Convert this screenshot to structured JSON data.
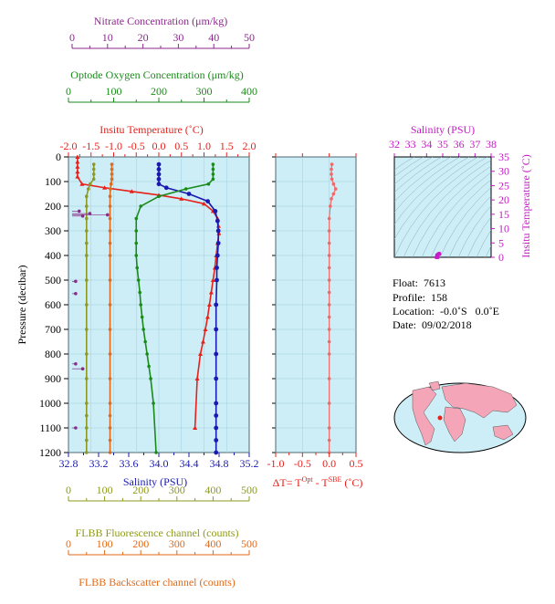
{
  "axes": {
    "nitrate": {
      "label": "Nitrate Concentration (μm/kg)",
      "ticks": [
        "0",
        "10",
        "20",
        "30",
        "40",
        "50"
      ],
      "range": [
        0,
        50
      ],
      "color": "#8B2A8B"
    },
    "oxygen": {
      "label": "Optode Oxygen Concentration (μm/kg)",
      "ticks": [
        "0",
        "100",
        "200",
        "300",
        "400"
      ],
      "range": [
        0,
        400
      ],
      "color": "#1A8A1A"
    },
    "temperature": {
      "label": "Insitu Temperature (˚C)",
      "ticks": [
        "-2.0",
        "-1.5",
        "-1.0",
        "-0.5",
        "0.0",
        "0.5",
        "1.0",
        "1.5",
        "2.0"
      ],
      "range": [
        -2.0,
        2.0
      ],
      "color": "#E8201A"
    },
    "salinity": {
      "label": "Salinity (PSU)",
      "ticks": [
        "32.8",
        "33.2",
        "33.6",
        "34.0",
        "34.4",
        "34.8",
        "35.2"
      ],
      "range": [
        32.8,
        35.2
      ],
      "color": "#1A1AB0"
    },
    "pressure": {
      "label": "Pressure (decibar)",
      "ticks": [
        "0",
        "100",
        "200",
        "300",
        "400",
        "500",
        "600",
        "700",
        "800",
        "900",
        "1000",
        "1100",
        "1200"
      ],
      "range": [
        0,
        1200
      ]
    },
    "deltaT": {
      "label_prefix": "ΔT= T",
      "sup1": "Opt",
      "label_mid": " - T",
      "sup2": "SBE",
      "label_suffix": " (˚C)",
      "ticks": [
        "-1.0",
        "-0.5",
        "0.0",
        "0.5"
      ],
      "range": [
        -1.0,
        0.5
      ],
      "color": "#E8201A"
    },
    "fluorescence": {
      "label": "FLBB Fluorescence channel (counts)",
      "ticks": [
        "0",
        "100",
        "200",
        "300",
        "400",
        "500"
      ],
      "range": [
        0,
        500
      ],
      "color": "#8E9A1E"
    },
    "backscatter": {
      "label": "FLBB Backscatter channel (counts)",
      "ticks": [
        "0",
        "100",
        "200",
        "300",
        "400",
        "500"
      ],
      "range": [
        0,
        500
      ],
      "color": "#E06A1A"
    },
    "ts_salinity": {
      "label": "Salinity (PSU)",
      "ticks": [
        "32",
        "33",
        "34",
        "35",
        "36",
        "37",
        "38"
      ],
      "range": [
        32,
        38
      ],
      "color": "#C81AC8"
    },
    "ts_temperature": {
      "label": "Insitu Temperature (˚C)",
      "ticks": [
        "0",
        "5",
        "10",
        "15",
        "20",
        "25",
        "30",
        "35"
      ],
      "range": [
        0,
        35
      ],
      "color": "#C81AC8"
    }
  },
  "info": {
    "float_label": "Float:",
    "float_value": "7613",
    "profile_label": "Profile:",
    "profile_value": "158",
    "location_label": "Location:",
    "location_value": "-0.0˚S   0.0˚E",
    "date_label": "Date:",
    "date_value": "09/02/2018"
  },
  "chart_data": {
    "type": "line",
    "y_axis": "pressure",
    "series": [
      {
        "name": "temperature",
        "color": "#E8201A",
        "marker": "triangle",
        "x": [
          -1.8,
          -1.8,
          -1.8,
          -1.8,
          -1.8,
          -1.7,
          -1.2,
          -0.6,
          0.0,
          0.5,
          1.0,
          1.2,
          1.3,
          1.32,
          1.33,
          1.3,
          1.27,
          1.24,
          1.2,
          1.16,
          1.12,
          1.08,
          1.03,
          0.98,
          0.92,
          0.85,
          0.8
        ],
        "y": [
          0,
          20,
          40,
          60,
          80,
          110,
          125,
          140,
          155,
          170,
          190,
          220,
          250,
          280,
          310,
          350,
          400,
          450,
          500,
          550,
          600,
          650,
          700,
          750,
          800,
          900,
          1100
        ]
      },
      {
        "name": "salinity",
        "color": "#1A1AB0",
        "marker": "circle",
        "x": [
          34.0,
          34.0,
          34.0,
          34.0,
          34.0,
          34.1,
          34.4,
          34.65,
          34.75,
          34.78,
          34.79,
          34.79,
          34.78,
          34.77,
          34.77,
          34.76,
          34.76,
          34.76,
          34.76,
          34.76,
          34.76,
          34.76,
          34.76,
          34.76
        ],
        "y": [
          30,
          50,
          70,
          90,
          110,
          125,
          150,
          180,
          220,
          260,
          300,
          350,
          400,
          450,
          500,
          600,
          700,
          800,
          900,
          1000,
          1050,
          1100,
          1150,
          1200
        ]
      },
      {
        "name": "oxygen",
        "color": "#1A8A1A",
        "marker": "circle",
        "x": [
          320,
          320,
          320,
          320,
          310,
          260,
          200,
          160,
          150,
          150,
          150,
          150,
          152,
          155,
          158,
          160,
          163,
          166,
          170,
          174,
          178,
          182,
          188,
          194
        ],
        "y": [
          30,
          50,
          70,
          90,
          110,
          130,
          160,
          200,
          250,
          300,
          350,
          400,
          450,
          500,
          550,
          600,
          650,
          700,
          750,
          800,
          850,
          900,
          1000,
          1200
        ]
      },
      {
        "name": "fluorescence",
        "color": "#8E9A1E",
        "marker": "circle",
        "x": [
          70,
          70,
          70,
          70,
          60,
          55,
          50,
          50,
          50,
          50,
          50,
          50,
          50,
          50,
          50,
          50,
          50,
          50,
          50,
          50,
          50,
          50
        ],
        "y": [
          30,
          50,
          70,
          90,
          110,
          130,
          160,
          200,
          250,
          300,
          350,
          400,
          500,
          600,
          700,
          800,
          900,
          1000,
          1050,
          1100,
          1150,
          1200
        ]
      },
      {
        "name": "backscatter",
        "color": "#E06A1A",
        "marker": "circle",
        "x": [
          120,
          120,
          120,
          120,
          118,
          116,
          115,
          115,
          115,
          115,
          115,
          115,
          115,
          115,
          115,
          115,
          115,
          115,
          115,
          115,
          115,
          115
        ],
        "y": [
          30,
          50,
          70,
          90,
          110,
          130,
          160,
          200,
          250,
          300,
          350,
          400,
          500,
          600,
          700,
          800,
          900,
          1000,
          1050,
          1100,
          1150,
          1200
        ]
      },
      {
        "name": "nitrate",
        "color": "#8B2A8B",
        "marker": "circle",
        "x": [
          2,
          5,
          3,
          10,
          1,
          1,
          1,
          3,
          1
        ],
        "y": [
          220,
          230,
          240,
          235,
          505,
          555,
          840,
          860,
          1100
        ]
      },
      {
        "name": "deltaT",
        "color": "#F06868",
        "marker": "circle",
        "x": [
          0.05,
          0.04,
          0.04,
          0.05,
          0.08,
          0.12,
          0.08,
          0.04,
          0.02,
          0.0,
          0.0,
          0.0,
          0.0,
          0.0,
          0.0,
          0.0,
          0.0,
          0.0,
          0.0,
          0.0,
          0.0,
          0.0,
          0.0,
          0.0,
          0.0,
          0.0
        ],
        "y": [
          30,
          50,
          70,
          90,
          110,
          130,
          150,
          170,
          200,
          250,
          300,
          350,
          400,
          450,
          500,
          550,
          600,
          650,
          700,
          750,
          800,
          900,
          1000,
          1100,
          1150,
          1200
        ]
      }
    ],
    "ts_points": {
      "color": "#C81AC8",
      "salinity": [
        34.65,
        34.7,
        34.75,
        34.78,
        34.8,
        34.7,
        34.6
      ],
      "temperature": [
        0.8,
        1.0,
        1.2,
        1.3,
        1.1,
        -0.5,
        -1.5
      ]
    },
    "map": {
      "marker_color": "#E8201A",
      "land_color": "#F4A6B8",
      "ocean_color": "#CDEEF6"
    }
  }
}
